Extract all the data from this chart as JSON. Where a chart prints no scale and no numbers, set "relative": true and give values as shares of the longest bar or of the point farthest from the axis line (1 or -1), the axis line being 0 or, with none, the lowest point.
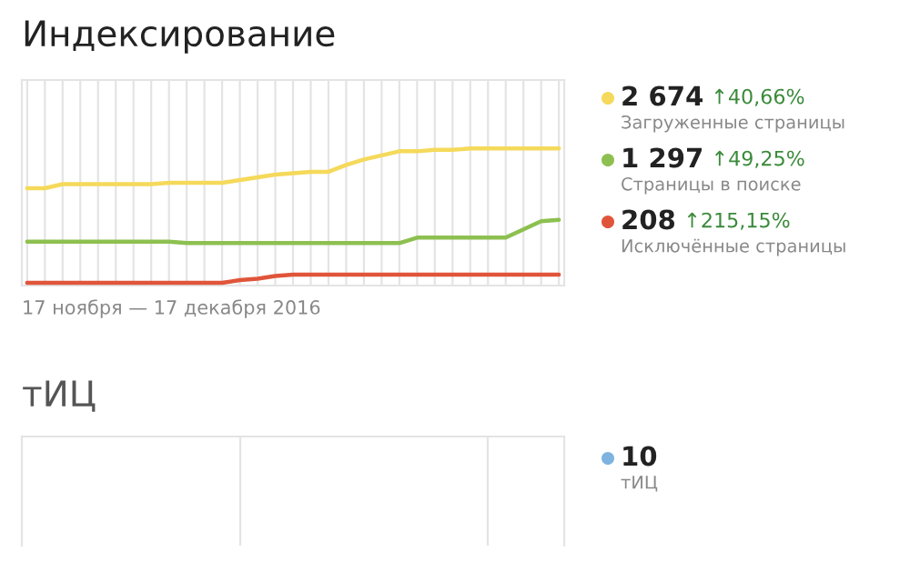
{
  "chart_data": [
    {
      "type": "line",
      "title": "Индексирование",
      "xlabel": "17 ноября — 17 декабря 2016",
      "relative": true,
      "grid": "x",
      "legend": "right",
      "categories": [
        null,
        null,
        null,
        null,
        null,
        null,
        null,
        null,
        null,
        null,
        null,
        null,
        null,
        null,
        null,
        null,
        null,
        null,
        null,
        null,
        null,
        null,
        null,
        null,
        null,
        null,
        null,
        null,
        null,
        null,
        null
      ],
      "series": [
        {
          "name": "Загруженные страницы",
          "color": "#f5d95a",
          "values": [
            0.71,
            0.71,
            0.74,
            0.74,
            0.74,
            0.74,
            0.74,
            0.74,
            0.75,
            0.75,
            0.75,
            0.75,
            0.77,
            0.79,
            0.81,
            0.82,
            0.83,
            0.83,
            0.88,
            0.92,
            0.95,
            0.98,
            0.98,
            0.99,
            0.99,
            1.0,
            1.0,
            1.0,
            1.0,
            1.0,
            1.0
          ]
        },
        {
          "name": "Страницы в поиске",
          "color": "#8dc050",
          "values": [
            0.32,
            0.32,
            0.32,
            0.32,
            0.32,
            0.32,
            0.32,
            0.32,
            0.32,
            0.31,
            0.31,
            0.31,
            0.31,
            0.31,
            0.31,
            0.31,
            0.31,
            0.31,
            0.31,
            0.31,
            0.31,
            0.31,
            0.35,
            0.35,
            0.35,
            0.35,
            0.35,
            0.35,
            0.41,
            0.47,
            0.48
          ]
        },
        {
          "name": "Исключённые страницы",
          "color": "#e0553a",
          "values": [
            0.02,
            0.02,
            0.02,
            0.02,
            0.02,
            0.02,
            0.02,
            0.02,
            0.02,
            0.02,
            0.02,
            0.02,
            0.04,
            0.05,
            0.07,
            0.08,
            0.08,
            0.08,
            0.08,
            0.08,
            0.08,
            0.08,
            0.08,
            0.08,
            0.08,
            0.08,
            0.08,
            0.08,
            0.08,
            0.08,
            0.08
          ]
        }
      ],
      "annotations": [
        "2 674",
        "↑40,66%",
        "1 297",
        "↑49,25%",
        "208",
        "↑215,15%"
      ]
    },
    {
      "type": "other",
      "title": "тИЦ",
      "legend": "right",
      "series": [
        {
          "name": "тИЦ",
          "color": "#7eb3e0"
        }
      ],
      "annotations": [
        "10"
      ]
    }
  ]
}
